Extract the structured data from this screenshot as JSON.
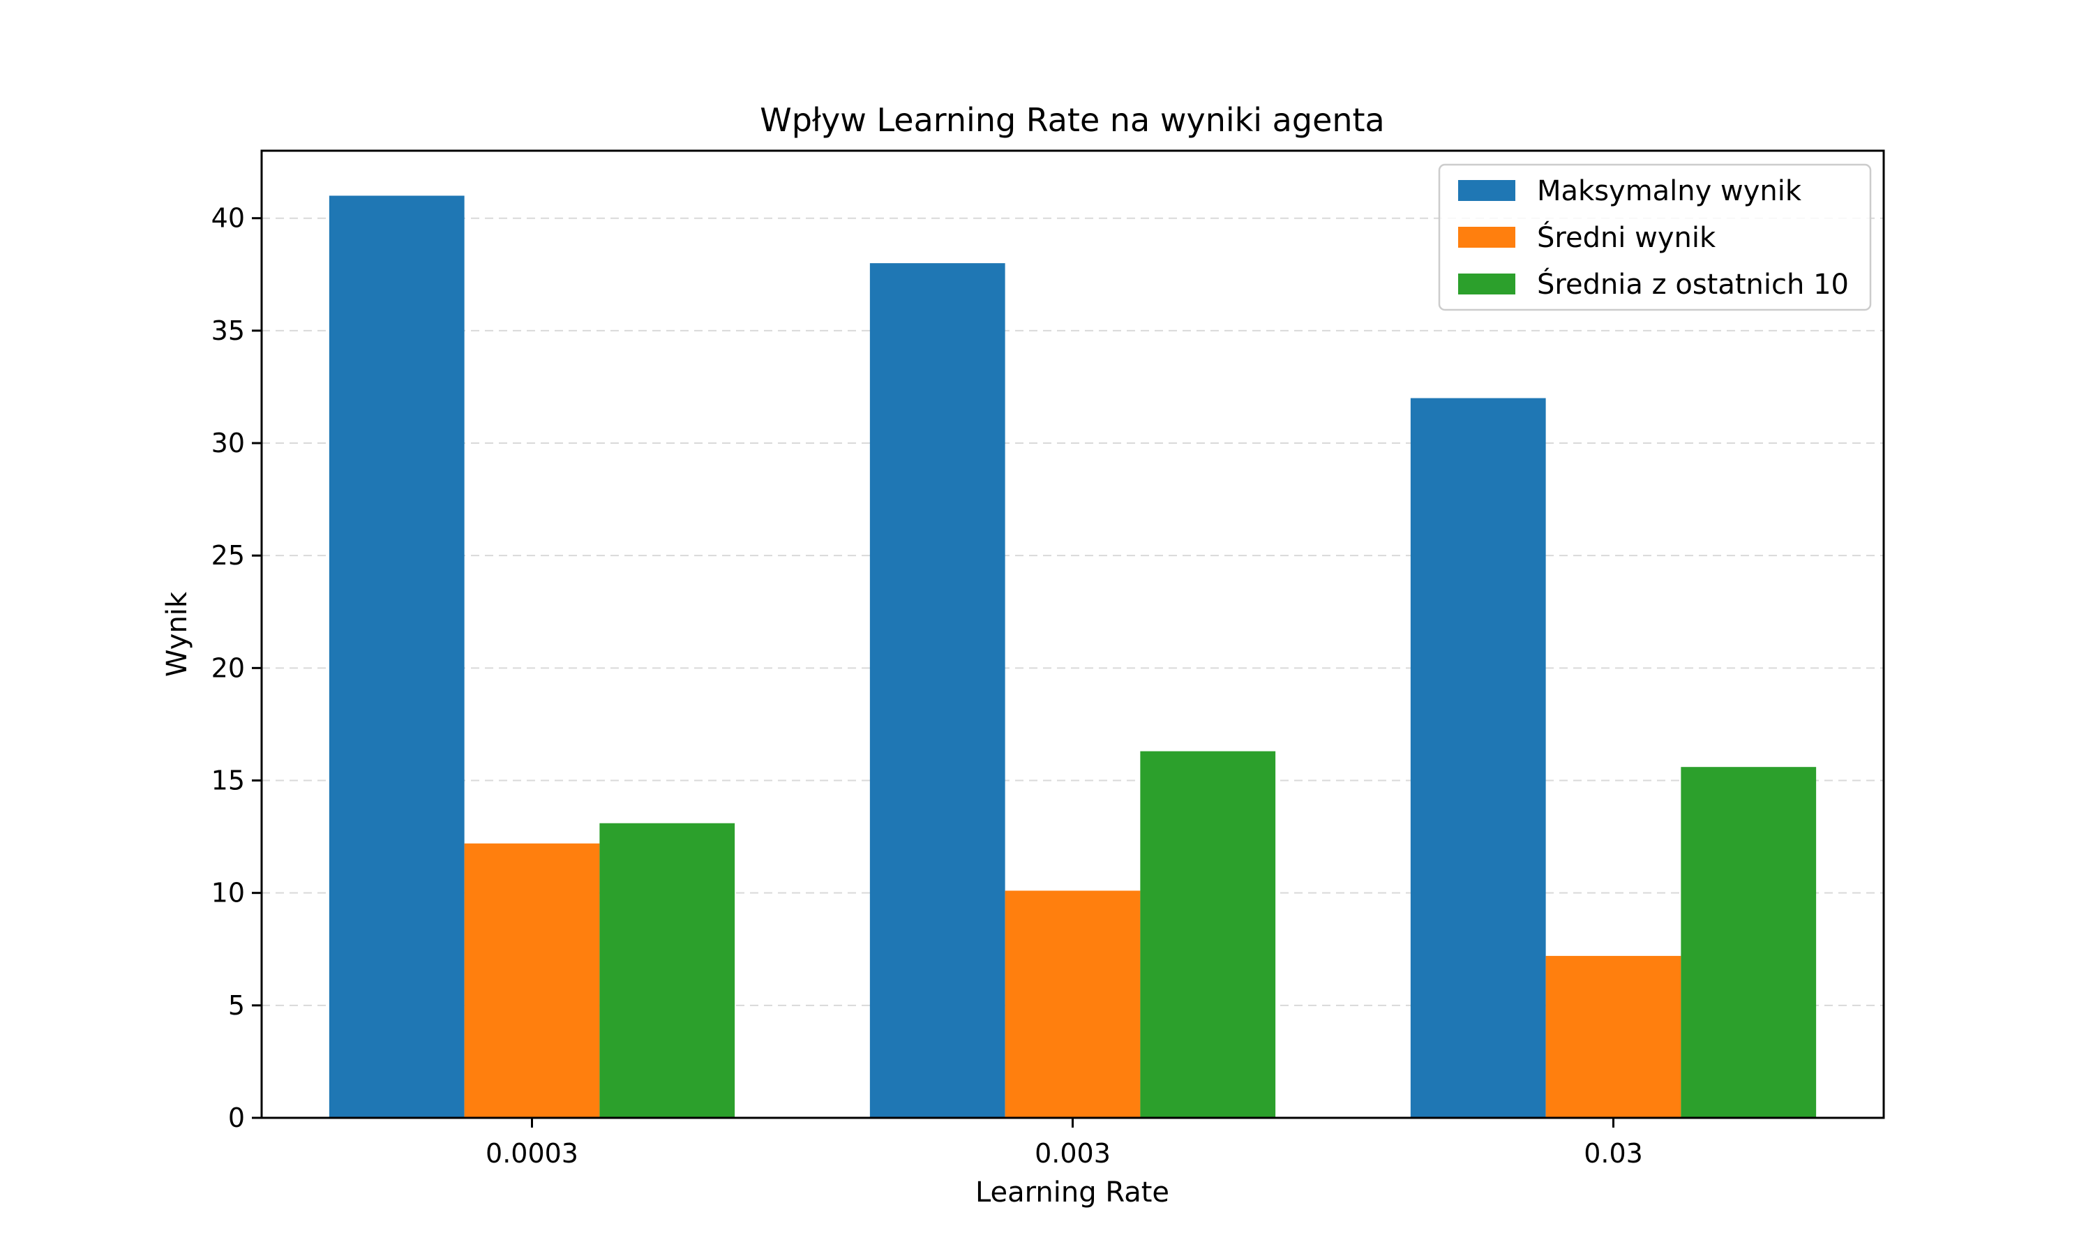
{
  "chart_data": {
    "type": "bar",
    "title": "Wpływ Learning Rate na wyniki agenta",
    "xlabel": "Learning Rate",
    "ylabel": "Wynik",
    "categories": [
      "0.0003",
      "0.003",
      "0.03"
    ],
    "series": [
      {
        "name": "Maksymalny wynik",
        "values": [
          41,
          38,
          32
        ],
        "color": "#1f77b4"
      },
      {
        "name": "Średni wynik",
        "values": [
          12.2,
          10.1,
          7.2
        ],
        "color": "#ff7f0e"
      },
      {
        "name": "Średnia z ostatnich 10",
        "values": [
          13.1,
          16.3,
          15.6
        ],
        "color": "#2ca02c"
      }
    ],
    "ylim": [
      0,
      43
    ],
    "yticks": [
      0,
      5,
      10,
      15,
      20,
      25,
      30,
      35,
      40
    ],
    "grid": "y-dashed",
    "legend_position": "top-right"
  }
}
